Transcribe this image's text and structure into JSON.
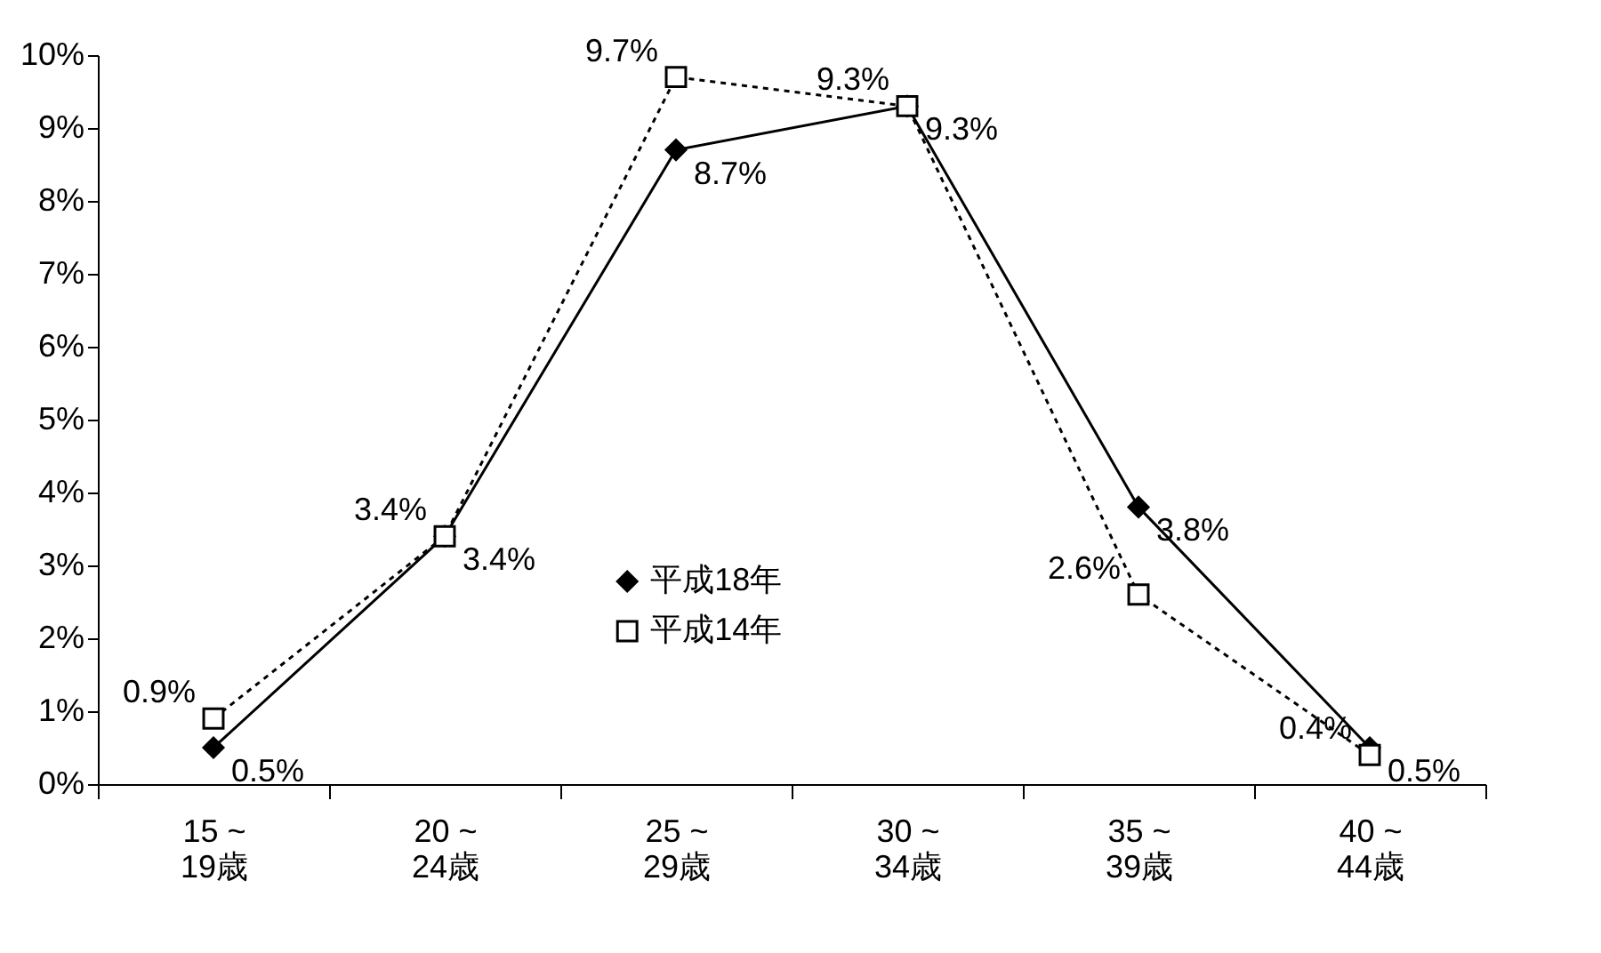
{
  "chart_data": {
    "type": "line",
    "categories": [
      "15 ~\n19歳",
      "20 ~\n24歳",
      "25 ~\n29歳",
      "30 ~\n34歳",
      "35 ~\n39歳",
      "40 ~\n44歳"
    ],
    "series": [
      {
        "name": "平成18年",
        "color": "#000000",
        "marker": "diamond",
        "line_style": "solid",
        "values": [
          0.5,
          3.4,
          8.7,
          9.3,
          3.8,
          0.5
        ],
        "value_labels": [
          "0.5%",
          "3.4%",
          "8.7%",
          "9.3%",
          "3.8%",
          "0.5%"
        ]
      },
      {
        "name": "平成14年",
        "color": "#000000",
        "marker": "square",
        "line_style": "dotted",
        "values": [
          0.9,
          3.4,
          9.7,
          9.3,
          2.6,
          0.4
        ],
        "value_labels": [
          "0.9%",
          "3.4%",
          "9.7%",
          "9.3%",
          "2.6%",
          "0.4%"
        ]
      }
    ],
    "ylim": [
      0,
      10
    ],
    "yticks": [
      {
        "value": 0,
        "label": "0%"
      },
      {
        "value": 1,
        "label": "1%"
      },
      {
        "value": 2,
        "label": "2%"
      },
      {
        "value": 3,
        "label": "3%"
      },
      {
        "value": 4,
        "label": "4%"
      },
      {
        "value": 5,
        "label": "5%"
      },
      {
        "value": 6,
        "label": "6%"
      },
      {
        "value": 7,
        "label": "7%"
      },
      {
        "value": 8,
        "label": "8%"
      },
      {
        "value": 9,
        "label": "9%"
      },
      {
        "value": 10,
        "label": "10%"
      }
    ],
    "grid": false,
    "legend": "bottom"
  }
}
